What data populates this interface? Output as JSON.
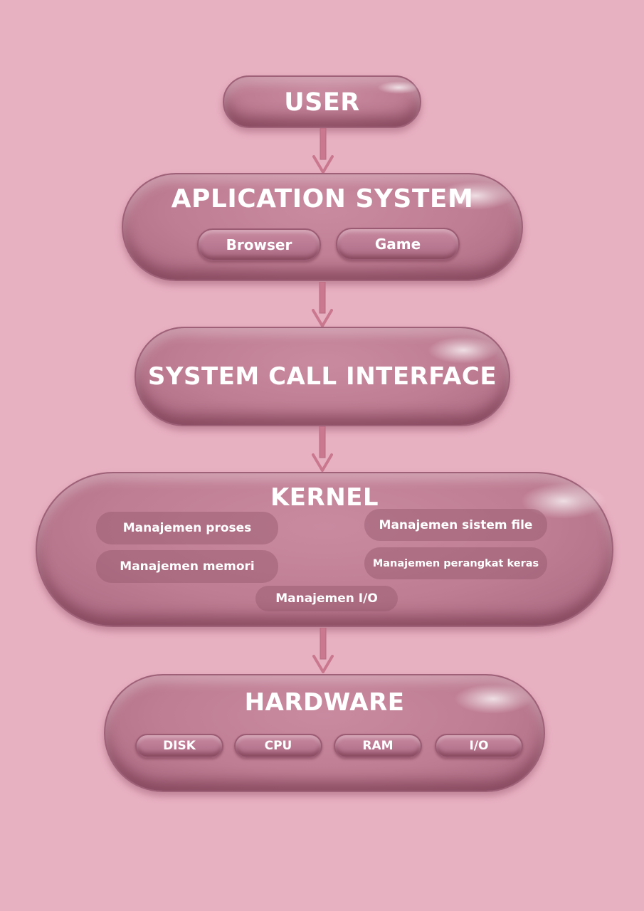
{
  "layers": {
    "user": {
      "title": "USER"
    },
    "application": {
      "title": "APLICATION SYSTEM",
      "items": [
        "Browser",
        "Game"
      ]
    },
    "syscall": {
      "title": "SYSTEM CALL INTERFACE"
    },
    "kernel": {
      "title": "KERNEL",
      "items": [
        "Manajemen proses",
        "Manajemen sistem file",
        "Manajemen memori",
        "Manajemen perangkat keras",
        "Manajemen I/O"
      ]
    },
    "hardware": {
      "title": "HARDWARE",
      "items": [
        "DISK",
        "CPU",
        "RAM",
        "I/O"
      ]
    }
  },
  "colors": {
    "background": "#e8b1c2",
    "pill": "#bf7d93",
    "arrow": "#c9788f",
    "text": "#ffffff"
  }
}
